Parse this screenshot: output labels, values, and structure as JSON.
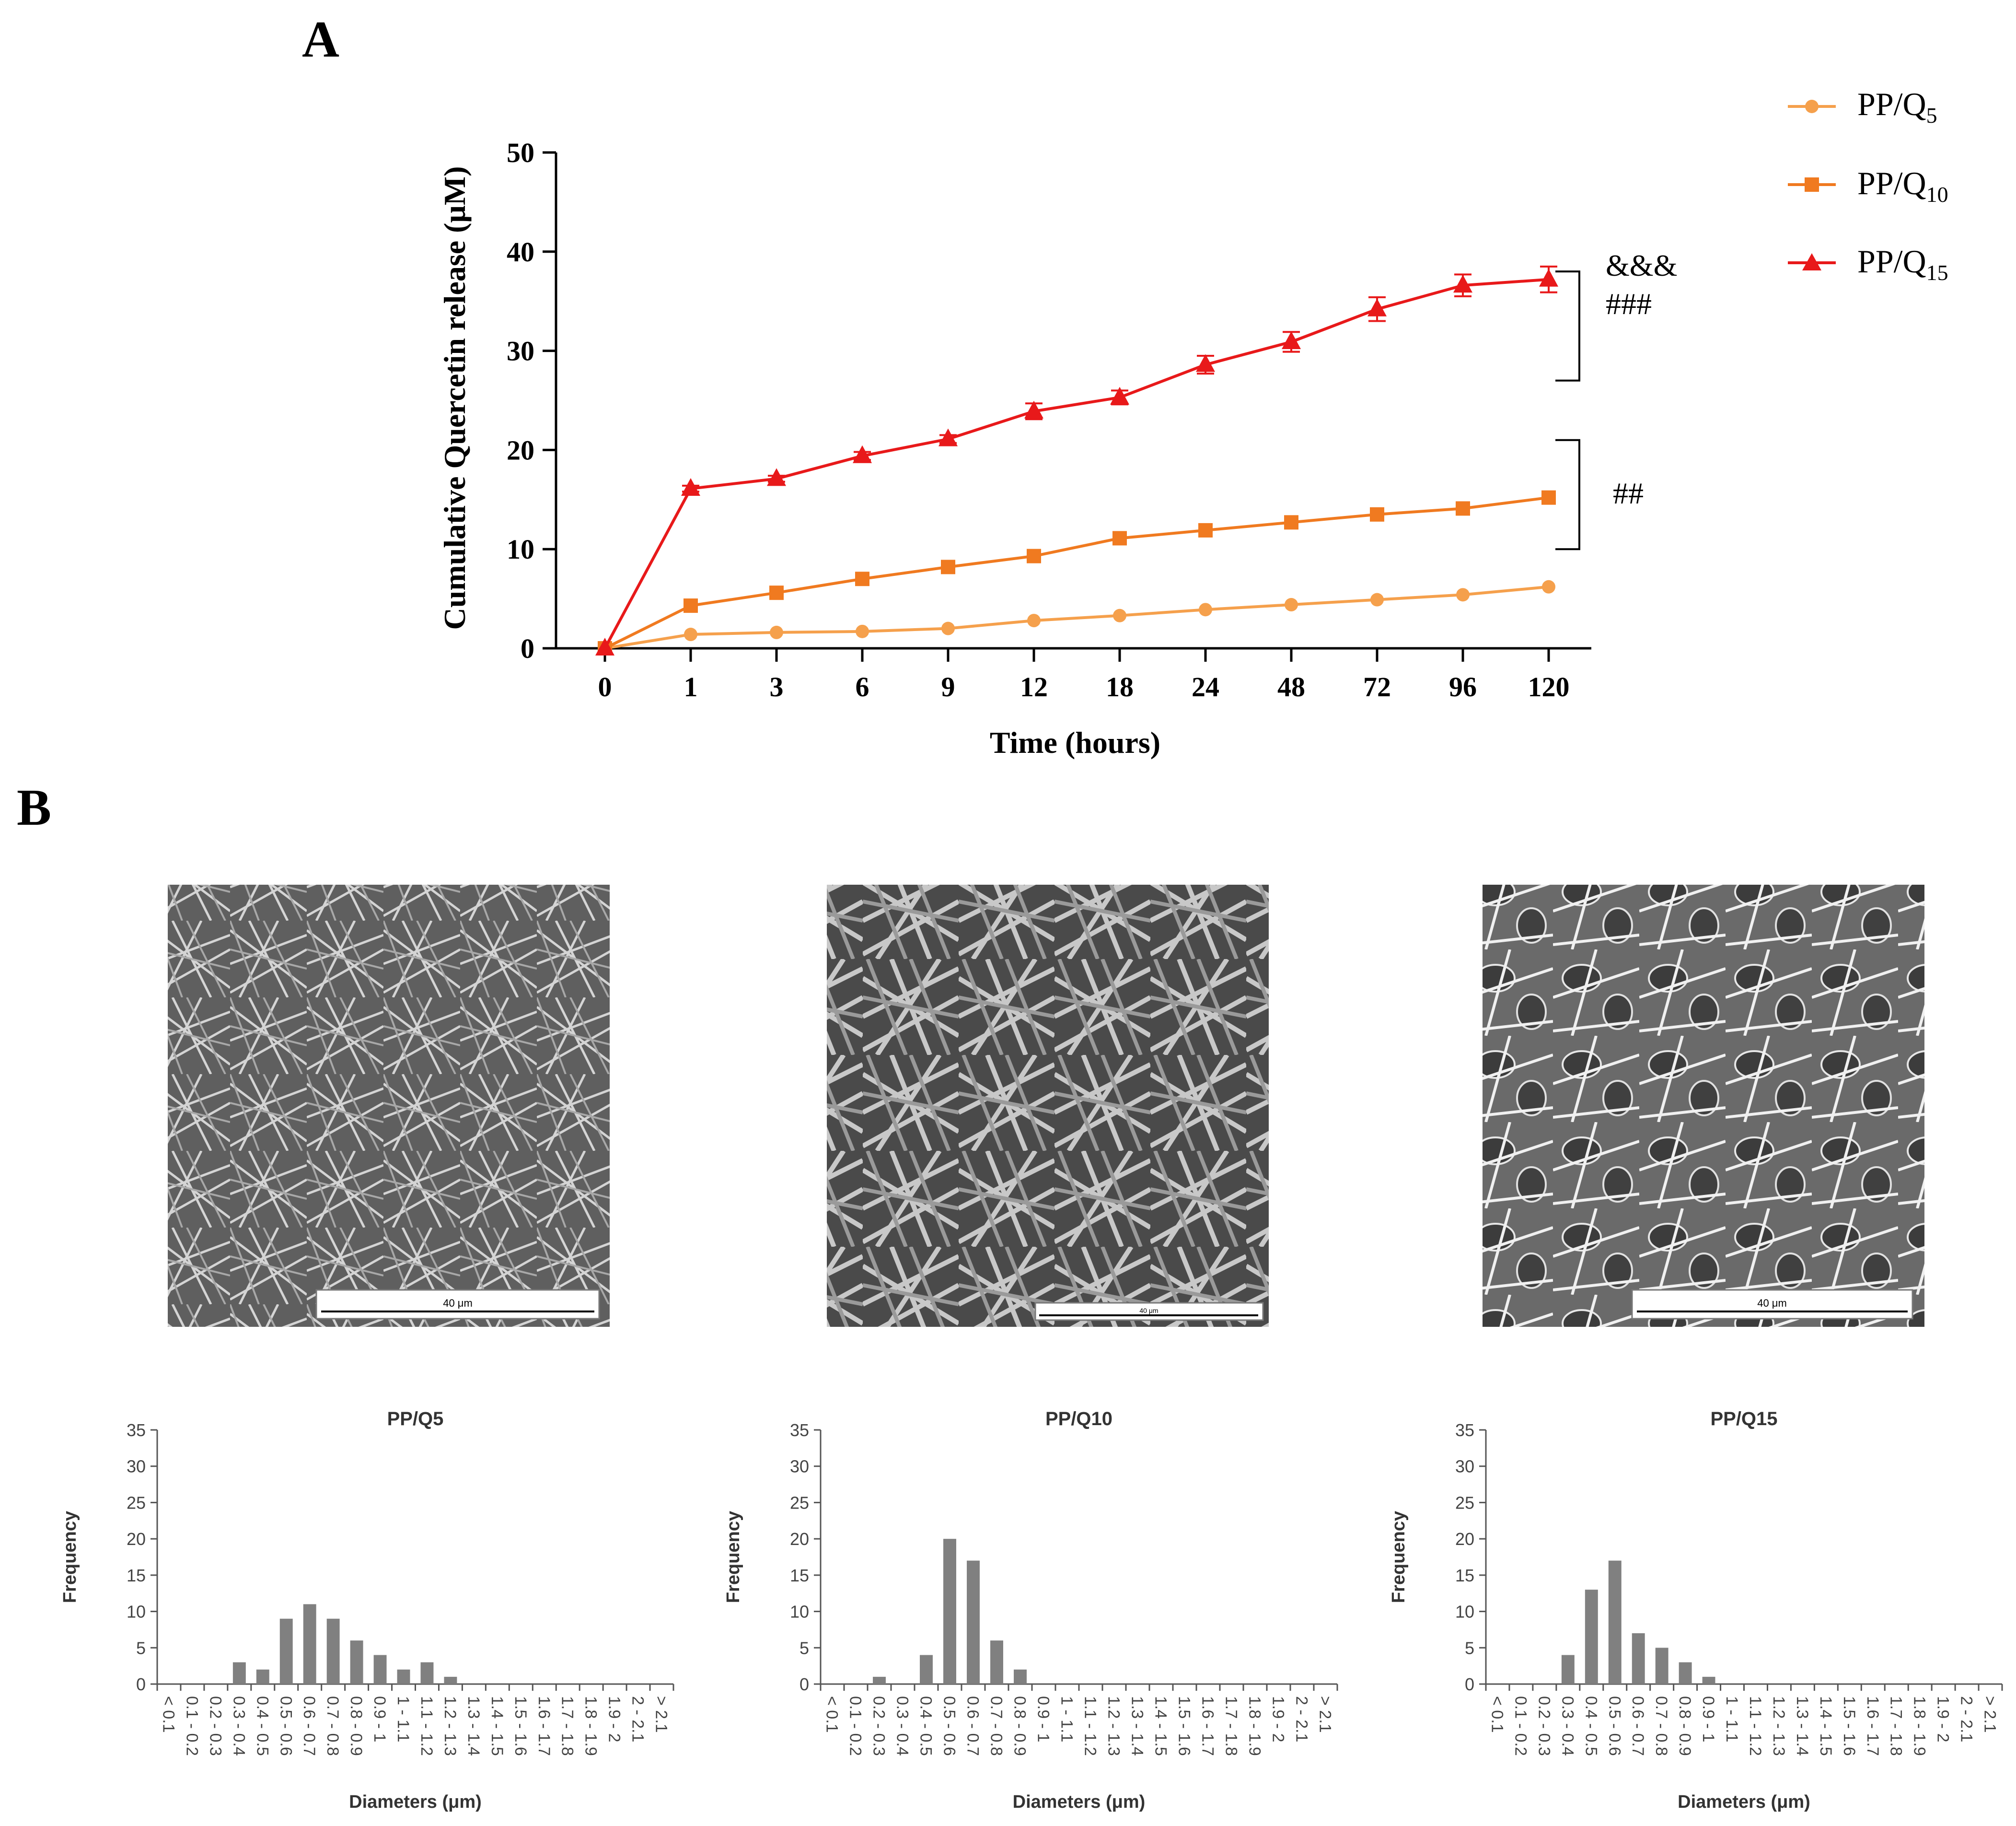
{
  "panel_a_label": "A",
  "panel_b_label": "B",
  "colors": {
    "q5": "#F5A04C",
    "q10": "#F07A20",
    "q15": "#E8191A",
    "bar": "#808080",
    "axis": "#000000"
  },
  "chart_data": [
    {
      "type": "line",
      "title": "",
      "xlabel": "Time (hours)",
      "ylabel": "Cumulative Quercetin release (μM)",
      "categories": [
        "0",
        "1",
        "3",
        "6",
        "9",
        "12",
        "18",
        "24",
        "48",
        "72",
        "96",
        "120"
      ],
      "ylim": [
        0,
        50
      ],
      "yticks": [
        0,
        10,
        20,
        30,
        40,
        50
      ],
      "series": [
        {
          "name": "PP/Q5",
          "marker": "circle",
          "values": [
            0,
            1.4,
            1.6,
            1.7,
            2.0,
            2.8,
            3.3,
            3.9,
            4.4,
            4.9,
            5.4,
            6.2
          ]
        },
        {
          "name": "PP/Q10",
          "marker": "square",
          "values": [
            0,
            4.3,
            5.6,
            7.0,
            8.2,
            9.3,
            11.1,
            11.9,
            12.7,
            13.5,
            14.1,
            15.2
          ]
        },
        {
          "name": "PP/Q15",
          "marker": "triangle",
          "values": [
            0,
            16.1,
            17.1,
            19.4,
            21.1,
            23.9,
            25.3,
            28.6,
            30.9,
            34.2,
            36.6,
            37.2
          ],
          "errors": [
            0,
            0.3,
            0.3,
            0.4,
            0.4,
            0.8,
            0.7,
            0.9,
            1.0,
            1.2,
            1.1,
            1.3
          ]
        }
      ],
      "legend": [
        {
          "main": "PP/Q",
          "sub": "5"
        },
        {
          "main": "PP/Q",
          "sub": "10"
        },
        {
          "main": "PP/Q",
          "sub": "15"
        }
      ],
      "annotations": [
        {
          "lines": [
            "&&&",
            "###"
          ],
          "y_range": [
            27,
            38
          ]
        },
        {
          "lines": [
            "##"
          ],
          "y_range": [
            10,
            21
          ]
        }
      ]
    },
    {
      "type": "bar",
      "title": "PP/Q5",
      "xlabel": "Diameters (μm)",
      "ylabel": "Frequency",
      "ylim": [
        0,
        35
      ],
      "yticks": [
        0,
        5,
        10,
        15,
        20,
        25,
        30,
        35
      ],
      "categories": [
        "< 0.1",
        "0.1 - 0.2",
        "0.2 - 0.3",
        "0.3 - 0.4",
        "0.4 - 0.5",
        "0.5 - 0.6",
        "0.6 - 0.7",
        "0.7 - 0.8",
        "0.8 - 0.9",
        "0.9 - 1",
        "1 - 1.1",
        "1.1 - 1.2",
        "1.2 - 1.3",
        "1.3 - 1.4",
        "1.4 - 1.5",
        "1.5 - 1.6",
        "1.6 - 1.7",
        "1.7 - 1.8",
        "1.8 - 1.9",
        "1.9 - 2",
        "2 - 2.1",
        "> 2.1"
      ],
      "values": [
        0,
        0,
        0,
        3,
        2,
        9,
        11,
        9,
        6,
        4,
        2,
        3,
        1,
        0,
        0,
        0,
        0,
        0,
        0,
        0,
        0,
        0
      ]
    },
    {
      "type": "bar",
      "title": "PP/Q10",
      "xlabel": "Diameters (μm)",
      "ylabel": "Frequency",
      "ylim": [
        0,
        35
      ],
      "yticks": [
        0,
        5,
        10,
        15,
        20,
        25,
        30,
        35
      ],
      "categories": [
        "< 0.1",
        "0.1 - 0.2",
        "0.2 - 0.3",
        "0.3 - 0.4",
        "0.4 - 0.5",
        "0.5 - 0.6",
        "0.6 - 0.7",
        "0.7 - 0.8",
        "0.8 - 0.9",
        "0.9 - 1",
        "1 - 1.1",
        "1.1 - 1.2",
        "1.2 - 1.3",
        "1.3 - 1.4",
        "1.4 - 1.5",
        "1.5 - 1.6",
        "1.6 - 1.7",
        "1.7 - 1.8",
        "1.8 - 1.9",
        "1.9 - 2",
        "2 - 2.1",
        "> 2.1"
      ],
      "values": [
        0,
        0,
        1,
        0,
        4,
        20,
        17,
        6,
        2,
        0,
        0,
        0,
        0,
        0,
        0,
        0,
        0,
        0,
        0,
        0,
        0,
        0
      ]
    },
    {
      "type": "bar",
      "title": "PP/Q15",
      "xlabel": "Diameters (μm)",
      "ylabel": "Frequency",
      "ylim": [
        0,
        35
      ],
      "yticks": [
        0,
        5,
        10,
        15,
        20,
        25,
        30,
        35
      ],
      "categories": [
        "< 0.1",
        "0.1 - 0.2",
        "0.2 - 0.3",
        "0.3 - 0.4",
        "0.4 - 0.5",
        "0.5 - 0.6",
        "0.6 - 0.7",
        "0.7 - 0.8",
        "0.8 - 0.9",
        "0.9 - 1",
        "1 - 1.1",
        "1.1 - 1.2",
        "1.2 - 1.3",
        "1.3 - 1.4",
        "1.4 - 1.5",
        "1.5 - 1.6",
        "1.6 - 1.7",
        "1.7 - 1.8",
        "1.8 - 1.9",
        "1.9 - 2",
        "2 - 2.1",
        "> 2.1"
      ],
      "values": [
        0,
        0,
        0,
        4,
        13,
        17,
        7,
        5,
        3,
        1,
        0,
        0,
        0,
        0,
        0,
        0,
        0,
        0,
        0,
        0,
        0,
        0
      ]
    }
  ],
  "sem_images": [
    {
      "name": "sem-image-pp-q5",
      "scale_label": "40 μm"
    },
    {
      "name": "sem-image-pp-q10",
      "scale_label": "40 μm"
    },
    {
      "name": "sem-image-pp-q15",
      "scale_label": "40 μm"
    }
  ]
}
